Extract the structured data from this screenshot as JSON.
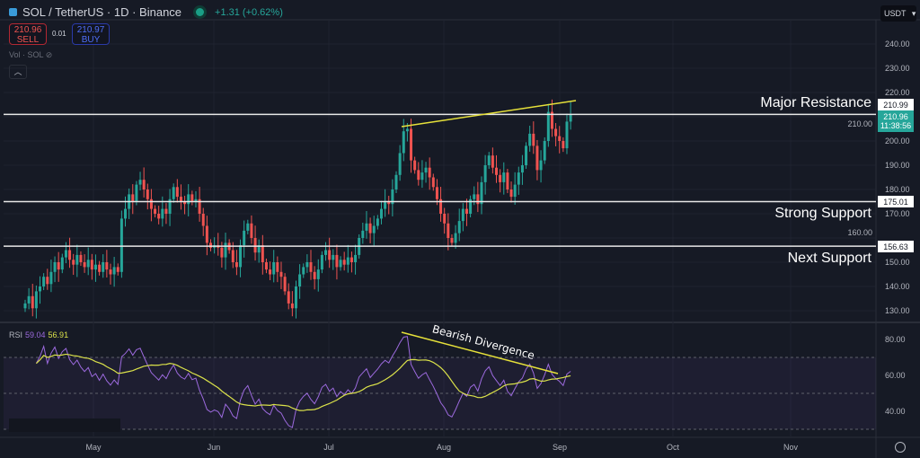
{
  "header": {
    "symbol": "SOL / TetherUS · 1D · Binance",
    "change": "+1.31 (+0.62%)",
    "sell_price": "210.96",
    "sell_label": "SELL",
    "spread": "0.01",
    "buy_price": "210.97",
    "buy_label": "BUY",
    "volume_label": "Vol · SOL",
    "currency": "USDT"
  },
  "annotations": {
    "major_resistance": "Major Resistance",
    "strong_support": "Strong Support",
    "next_support": "Next Support",
    "bearish_divergence": "Bearish Divergence"
  },
  "rsi_legend": {
    "name": "RSI",
    "rsi_value": "59.04",
    "rsi_ma_value": "56.91"
  },
  "price_tags": {
    "resistance": "210.99",
    "last_price": "210.96",
    "countdown": "11:38:56",
    "strong_support": "175.01",
    "next_support": "156.63"
  },
  "colors": {
    "up": "#26a69a",
    "down": "#ef5350",
    "rsi": "#9c6ade",
    "rsi_ma": "#dbe24a",
    "trendline": "#e6e13a",
    "level": "#e8e8e8"
  },
  "chart_data": {
    "type": "candlestick",
    "title": "SOL / TetherUS · 1D · Binance",
    "x_ticks": [
      "May",
      "Jun",
      "Jul",
      "Aug",
      "Sep",
      "Oct",
      "Nov"
    ],
    "y_ticks": [
      "240.00",
      "230.00",
      "220.00",
      "210.00",
      "200.00",
      "190.00",
      "180.00",
      "170.00",
      "160.00",
      "150.00",
      "140.00",
      "130.00"
    ],
    "ylim": [
      122,
      250
    ],
    "grid": true,
    "levels": [
      {
        "label": "Major Resistance",
        "value": 210.99
      },
      {
        "label": "Strong Support",
        "value": 175.01
      },
      {
        "label": "Next Support",
        "value": 156.63
      }
    ],
    "closes": [
      133,
      136,
      131,
      138,
      140,
      144,
      141,
      146,
      150,
      147,
      152,
      155,
      151,
      149,
      153,
      150,
      148,
      151,
      147,
      149,
      146,
      150,
      147,
      145,
      148,
      146,
      168,
      172,
      178,
      175,
      182,
      184,
      180,
      176,
      172,
      170,
      168,
      172,
      170,
      176,
      181,
      177,
      175,
      174,
      178,
      175,
      176,
      170,
      165,
      158,
      156,
      157,
      156,
      152,
      158,
      155,
      150,
      148,
      157,
      163,
      166,
      160,
      154,
      157,
      150,
      147,
      145,
      150,
      146,
      144,
      138,
      133,
      131,
      140,
      145,
      148,
      150,
      146,
      143,
      147,
      153,
      155,
      151,
      153,
      148,
      151,
      149,
      152,
      150,
      153,
      160,
      163,
      166,
      162,
      165,
      168,
      172,
      175,
      174,
      180,
      186,
      195,
      204,
      205,
      192,
      188,
      184,
      187,
      189,
      185,
      181,
      176,
      170,
      166,
      160,
      158,
      162,
      167,
      172,
      170,
      176,
      178,
      174,
      183,
      190,
      194,
      189,
      186,
      183,
      187,
      180,
      177,
      182,
      187,
      190,
      198,
      203,
      198,
      188,
      192,
      200,
      212,
      205,
      202,
      200,
      197,
      208,
      210.96
    ],
    "rsi_panel": {
      "y_ticks": [
        "80.00",
        "60.00",
        "40.00"
      ],
      "ylim": [
        22,
        88
      ],
      "bands": [
        70,
        50,
        30
      ],
      "period": 14,
      "ma_period": 14
    }
  }
}
